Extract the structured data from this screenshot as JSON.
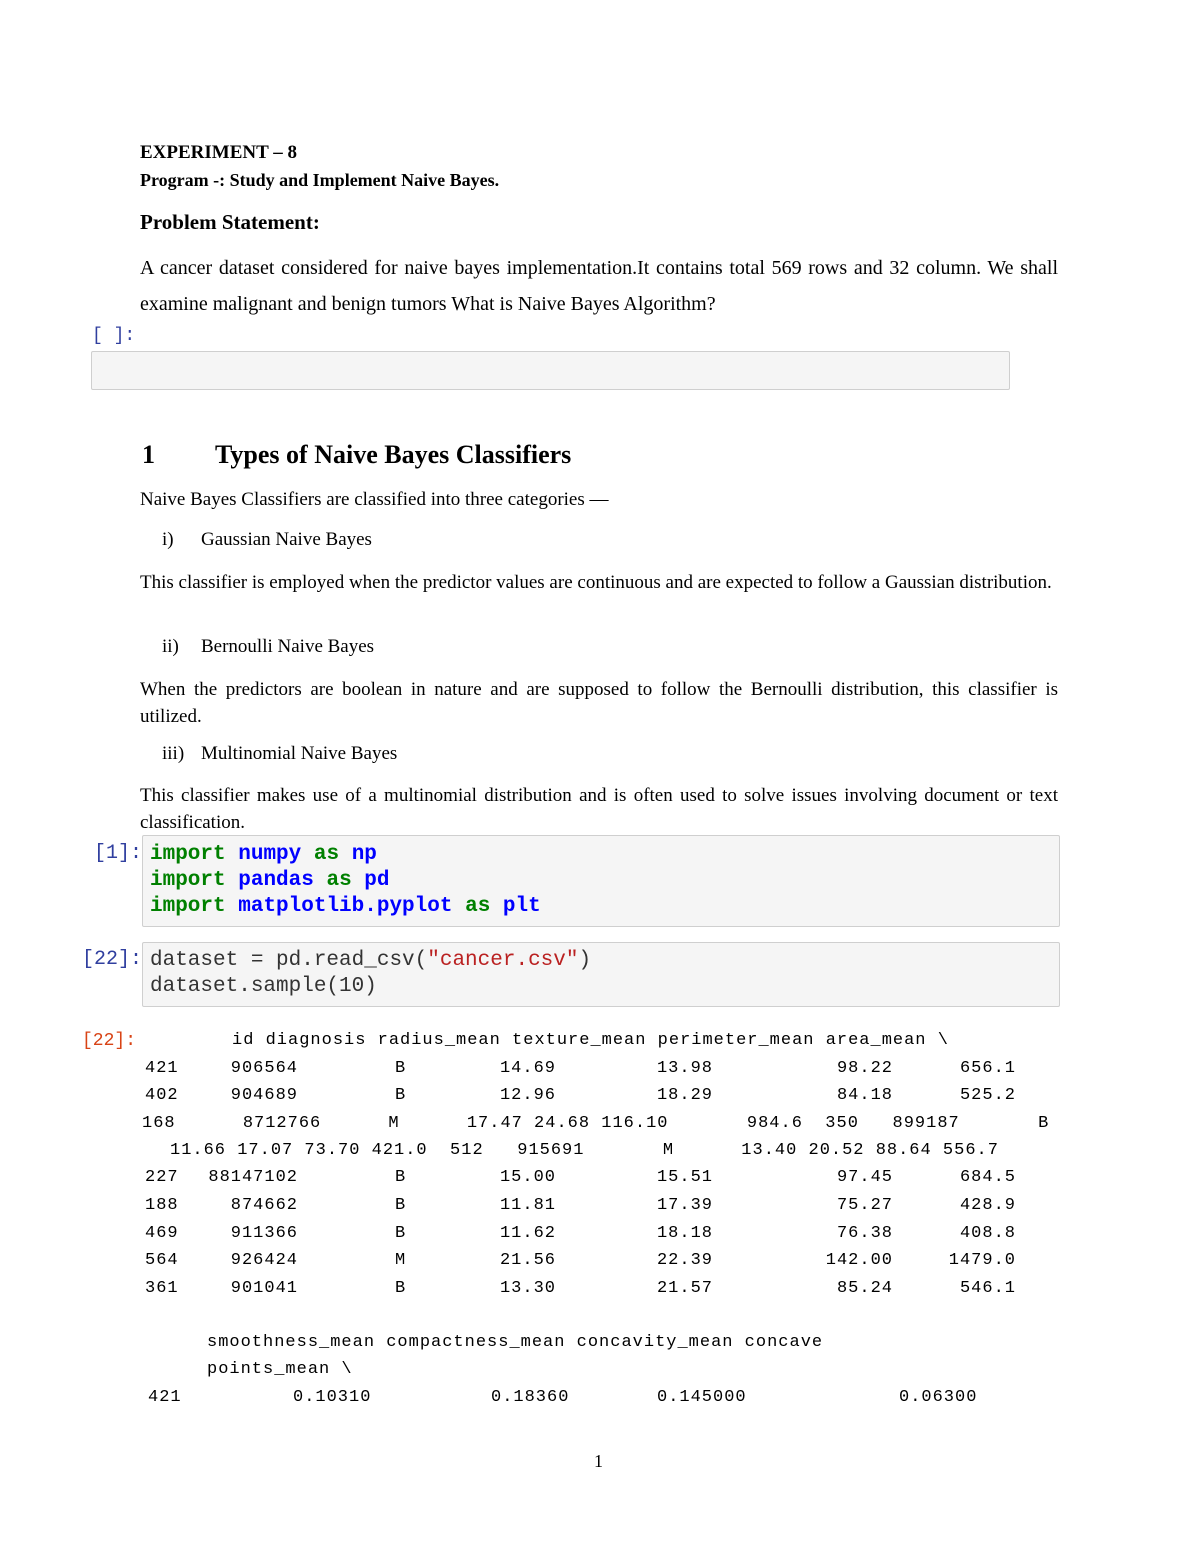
{
  "header": {
    "experiment": "EXPERIMENT – 8",
    "program": "Program -: Study and Implement Naive Bayes."
  },
  "problem": {
    "heading": "Problem Statement:",
    "text": "A cancer dataset considered for naive bayes implementation.It contains total 569 rows and 32 column. We shall examine malignant and benign tumors What is Naive Bayes Algorithm?"
  },
  "empty_cell": {
    "prompt": "[ ]:"
  },
  "section": {
    "number": "1",
    "title": "Types of Naive Bayes Classifiers",
    "intro": "Naive Bayes Classifiers are classified into three categories —",
    "items": [
      {
        "marker": "i)",
        "label": "Gaussian Naive Bayes",
        "desc": "This classifier is employed when the predictor values are continuous and are expected to follow a Gaussian distribution."
      },
      {
        "marker": "ii)",
        "label": "Bernoulli Naive Bayes",
        "desc": "When the predictors are boolean in nature and are supposed to follow the Bernoulli distribution, this classifier is utilized."
      },
      {
        "marker": "iii)",
        "label": "Multinomial Naive Bayes",
        "desc": "This classifier makes use of a multinomial distribution and is often used to solve issues involving document or text classification."
      }
    ]
  },
  "cell1": {
    "prompt": "[1]:",
    "lines": [
      {
        "kw": "import",
        "mod": "numpy",
        "as": "as",
        "alias": "np"
      },
      {
        "kw": "import",
        "mod": "pandas",
        "as": "as",
        "alias": "pd"
      },
      {
        "kw": "import",
        "mod": "matplotlib.pyplot",
        "as": "as",
        "alias": "plt"
      }
    ]
  },
  "cell2": {
    "prompt": "[22]:",
    "line1_pre": "dataset = pd.read_csv(",
    "line1_str": "\"cancer.csv\"",
    "line1_post": ")",
    "line2": "dataset.sample(10)"
  },
  "output": {
    "prompt": "[22]:",
    "header": "id diagnosis radius_mean texture_mean perimeter_mean area_mean \\",
    "rows": [
      [
        "421",
        "906564",
        "B",
        "14.69",
        "13.98",
        "98.22",
        "656.1"
      ],
      [
        "402",
        "904689",
        "B",
        "12.96",
        "18.29",
        "84.18",
        "525.2"
      ]
    ],
    "broken_lines": [
      "168      8712766      M      17.47 24.68 116.10       984.6  350   899187       B",
      "11.66 17.07 73.70 421.0  512   915691       M      13.40 20.52 88.64 556.7"
    ],
    "rows2": [
      [
        "227",
        "88147102",
        "B",
        "15.00",
        "15.51",
        "97.45",
        "684.5"
      ],
      [
        "188",
        "874662",
        "B",
        "11.81",
        "17.39",
        "75.27",
        "428.9"
      ],
      [
        "469",
        "911366",
        "B",
        "11.62",
        "18.18",
        "76.38",
        "408.8"
      ],
      [
        "564",
        "926424",
        "M",
        "21.56",
        "22.39",
        "142.00",
        "1479.0"
      ],
      [
        "361",
        "901041",
        "B",
        "13.30",
        "21.57",
        "85.24",
        "546.1"
      ]
    ],
    "header2_line1": "smoothness_mean compactness_mean concavity_mean concave",
    "header2_line2": "points_mean \\",
    "row3": [
      "421",
      "0.10310",
      "0.18360",
      "0.145000",
      "0.06300"
    ]
  },
  "footer": {
    "page_number": "1"
  }
}
